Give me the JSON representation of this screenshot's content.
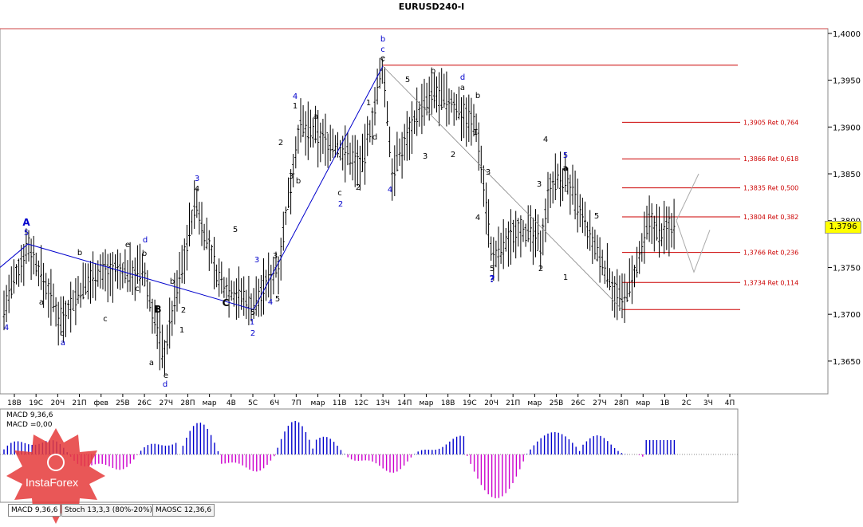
{
  "title": "EURUSD240-I",
  "current_price": "1,3796",
  "colors": {
    "bars": "#000000",
    "wave_blue": "#0000cc",
    "retrace": "#cc0000",
    "macd_pos": "#0000cc",
    "macd_neg": "#cc00cc",
    "grid": "#bbbbbb",
    "projection": "#aaaaaa"
  },
  "chart_data": {
    "type": "ohlc",
    "y_ticks": [
      "1,4000",
      "1,3950",
      "1,3900",
      "1,3850",
      "1,3800",
      "1,3750",
      "1,3700",
      "1,3650"
    ],
    "ylim": [
      1.3615,
      1.4005
    ],
    "x_ticks": [
      "18В",
      "19С",
      "20Ч",
      "21П",
      "фев",
      "25В",
      "26С",
      "27Ч",
      "28П",
      "мар",
      "4В",
      "5С",
      "6Ч",
      "7П",
      "мар",
      "11В",
      "12С",
      "13Ч",
      "14П",
      "мар",
      "18В",
      "19С",
      "20Ч",
      "21П",
      "мар",
      "25В",
      "26С",
      "27Ч",
      "28П",
      "мар",
      "1В",
      "2С",
      "3Ч",
      "4П"
    ],
    "retracement_levels": [
      {
        "label": "1,3905 Ret 0,764",
        "price": 1.3905
      },
      {
        "label": "1,3866 Ret 0,618",
        "price": 1.3866
      },
      {
        "label": "1,3835 Ret 0,500",
        "price": 1.3835
      },
      {
        "label": "1,3804 Ret 0,382",
        "price": 1.3804
      },
      {
        "label": "1,3766 Ret 0,236",
        "price": 1.3766
      },
      {
        "label": "1,3734 Ret 0,114",
        "price": 1.3734
      }
    ],
    "range_lines": {
      "high": 1.3966,
      "low": 1.3705
    },
    "wave_labels": [
      "A",
      "5",
      "4",
      "a",
      "c",
      "a",
      "b",
      "c",
      "e",
      "d",
      "b",
      "c",
      "a",
      "e",
      "d",
      "b",
      "B",
      "1",
      "2",
      "3",
      "4",
      "5",
      "C",
      "5",
      "1",
      "2",
      "3",
      "4",
      "5",
      "3",
      "4",
      "1",
      "2",
      "3",
      "b",
      "a",
      "c",
      "2",
      "2",
      "1",
      "d",
      "b",
      "c",
      "e",
      "4",
      "5",
      "3",
      "b",
      "d",
      "a",
      "b",
      "1",
      "2",
      "3",
      "4",
      "5",
      "?",
      "3",
      "2",
      "1",
      "4",
      "5",
      "a",
      "5"
    ]
  },
  "macd": {
    "label1": "MACD 9,36,6",
    "label2": "MACD =0,00"
  },
  "tabs": [
    "MACD 9,36,6",
    "Stoch 13,3,3 (80%-20%)",
    "MAOSC 12,36,6"
  ],
  "logo_text": "InstaForex"
}
